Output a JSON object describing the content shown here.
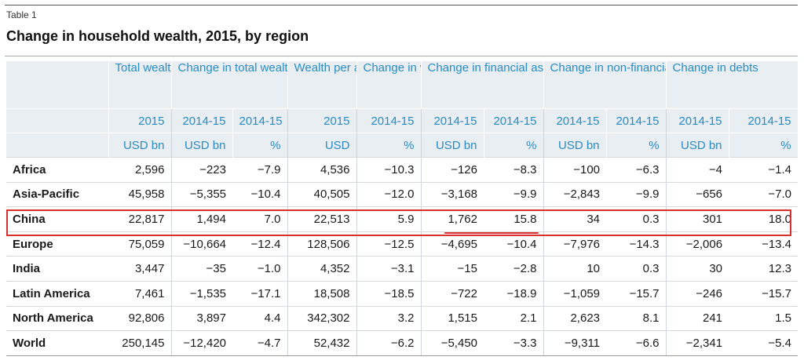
{
  "table_label": "Table 1",
  "title": "Change in household wealth, 2015, by region",
  "header_groups": [
    "",
    "Total wealth",
    "Change in total wealth",
    "Wealth per adult",
    "Change in wealth per adult",
    "Change in financial assets",
    "Change in non-financial assets",
    "Change in debts"
  ],
  "years": [
    "",
    "2015",
    "2014-15",
    "2014-15",
    "2015",
    "2014-15",
    "2014-15",
    "2014-15",
    "2014-15",
    "2014-15",
    "2014-15",
    "2014-15"
  ],
  "units": [
    "",
    "USD bn",
    "USD bn",
    "%",
    "USD",
    "%",
    "USD bn",
    "%",
    "USD bn",
    "%",
    "USD bn",
    "%"
  ],
  "rows": [
    [
      "Africa",
      "2,596",
      "−223",
      "−7.9",
      "4,536",
      "−10.3",
      "−126",
      "−8.3",
      "−100",
      "−6.3",
      "−4",
      "−1.4"
    ],
    [
      "Asia-Pacific",
      "45,958",
      "−5,355",
      "−10.4",
      "40,505",
      "−12.0",
      "−3,168",
      "−9.9",
      "−2,843",
      "−9.9",
      "−656",
      "−7.0"
    ],
    [
      "China",
      "22,817",
      "1,494",
      "7.0",
      "22,513",
      "5.9",
      "1,762",
      "15.8",
      "34",
      "0.3",
      "301",
      "18.0"
    ],
    [
      "Europe",
      "75,059",
      "−10,664",
      "−12.4",
      "128,506",
      "−12.5",
      "−4,695",
      "−10.4",
      "−7,976",
      "−14.3",
      "−2,006",
      "−13.4"
    ],
    [
      "India",
      "3,447",
      "−35",
      "−1.0",
      "4,352",
      "−3.1",
      "−15",
      "−2.8",
      "10",
      "0.3",
      "30",
      "12.3"
    ],
    [
      "Latin America",
      "7,461",
      "−1,535",
      "−17.1",
      "18,508",
      "−18.5",
      "−722",
      "−18.9",
      "−1,059",
      "−15.7",
      "−246",
      "−15.7"
    ],
    [
      "North America",
      "92,806",
      "3,897",
      "4.4",
      "342,302",
      "3.2",
      "1,515",
      "2.1",
      "2,623",
      "8.1",
      "241",
      "1.5"
    ],
    [
      "World",
      "250,145",
      "−12,420",
      "−4.7",
      "52,432",
      "−6.2",
      "−5,450",
      "−3.3",
      "−9,311",
      "−6.6",
      "−2,341",
      "−5.4"
    ]
  ],
  "highlight_color": "#d9302f",
  "header_color": "#2a8bc1"
}
